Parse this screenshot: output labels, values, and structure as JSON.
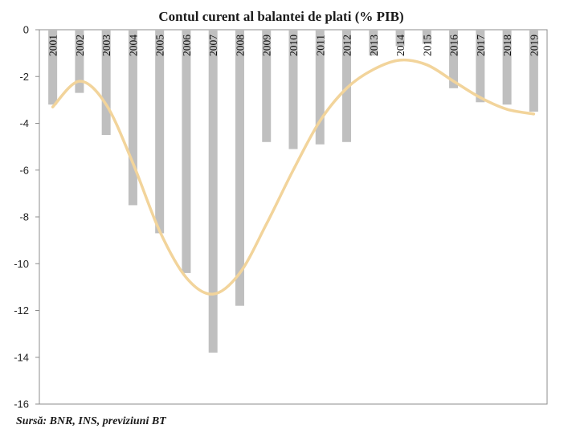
{
  "chart_data": {
    "type": "bar",
    "title": "Contul curent al balantei de plati (% PIB)",
    "source": "Sursă: BNR, INS, previziuni BT",
    "categories": [
      "2001",
      "2002",
      "2003",
      "2004",
      "2005",
      "2006",
      "2007",
      "2008",
      "2009",
      "2010",
      "2011",
      "2012",
      "2013",
      "2014",
      "2015",
      "2016",
      "2017",
      "2018",
      "2019"
    ],
    "values": [
      -3.2,
      -2.7,
      -4.5,
      -7.5,
      -8.7,
      -10.4,
      -13.8,
      -11.8,
      -4.8,
      -5.1,
      -4.9,
      -4.8,
      -1.1,
      -0.7,
      -0.6,
      -2.5,
      -3.1,
      -3.2,
      -3.5
    ],
    "ylim": [
      -16,
      0
    ],
    "yticks": [
      0,
      -2,
      -4,
      -6,
      -8,
      -10,
      -12,
      -14,
      -16
    ],
    "grid": false,
    "legend": "none",
    "series": [
      {
        "type": "line",
        "values": [
          -3.3,
          -2.2,
          -3.2,
          -5.7,
          -8.6,
          -10.6,
          -11.3,
          -10.4,
          -8.3,
          -6.0,
          -3.9,
          -2.5,
          -1.7,
          -1.3,
          -1.5,
          -2.2,
          -2.9,
          -3.4,
          -3.6
        ]
      }
    ],
    "colors": {
      "bars": "#bfbfbf",
      "line": "#f2d49b",
      "axis": "#8c8c8c"
    }
  }
}
